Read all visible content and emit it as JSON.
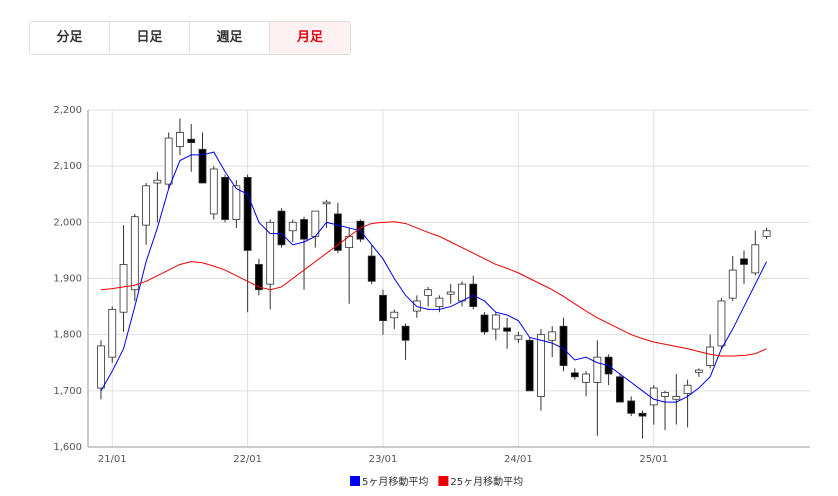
{
  "tabs": {
    "labels": [
      "分足",
      "日足",
      "週足",
      "月足"
    ],
    "selected": 3
  },
  "chart_data": {
    "type": "candlestick",
    "categories": [
      null,
      "21/01",
      null,
      null,
      null,
      null,
      null,
      null,
      null,
      null,
      null,
      null,
      null,
      "22/01",
      null,
      null,
      null,
      null,
      null,
      null,
      null,
      null,
      null,
      null,
      null,
      "23/01",
      null,
      null,
      null,
      null,
      null,
      null,
      null,
      null,
      null,
      null,
      null,
      "24/01",
      null,
      null,
      null,
      null,
      null,
      null,
      null,
      null,
      null,
      null,
      null,
      "25/01",
      null,
      null,
      null,
      null,
      null,
      null,
      null,
      null,
      null,
      null
    ],
    "candles": {
      "open": [
        1705,
        1760,
        1840,
        1880,
        1995,
        2070,
        2068,
        2135,
        2148,
        2130,
        2015,
        2080,
        2005,
        2080,
        1925,
        1890,
        2020,
        1985,
        2005,
        1975,
        2033,
        2015,
        1955,
        2002,
        1940,
        1870,
        1830,
        1815,
        1842,
        1870,
        1850,
        1872,
        1860,
        1890,
        1835,
        1810,
        1812,
        1792,
        1790,
        1690,
        1790,
        1815,
        1732,
        1715,
        1715,
        1760,
        1725,
        1682,
        1660,
        1675,
        1690,
        1685,
        1695,
        1733,
        1745,
        1780,
        1865,
        1935,
        1910,
        1975
      ],
      "high": [
        1790,
        1850,
        1995,
        2015,
        2070,
        2090,
        2160,
        2185,
        2175,
        2160,
        2100,
        2085,
        2075,
        2085,
        1935,
        2005,
        2025,
        2005,
        2010,
        2020,
        2040,
        2035,
        1990,
        2005,
        1960,
        1880,
        1845,
        1820,
        1870,
        1885,
        1870,
        1890,
        1895,
        1905,
        1840,
        1840,
        1830,
        1805,
        1795,
        1810,
        1815,
        1830,
        1740,
        1735,
        1790,
        1765,
        1730,
        1690,
        1665,
        1710,
        1700,
        1730,
        1720,
        1740,
        1800,
        1865,
        1940,
        1950,
        1985,
        1990
      ],
      "low": [
        1685,
        1750,
        1805,
        1860,
        1960,
        2000,
        2060,
        2120,
        2090,
        2070,
        2005,
        2000,
        1990,
        1840,
        1870,
        1845,
        1955,
        1965,
        1880,
        1955,
        1990,
        1945,
        1855,
        1965,
        1890,
        1800,
        1810,
        1755,
        1830,
        1850,
        1840,
        1855,
        1850,
        1845,
        1800,
        1790,
        1775,
        1785,
        1700,
        1665,
        1760,
        1735,
        1720,
        1690,
        1620,
        1710,
        1680,
        1655,
        1615,
        1640,
        1630,
        1640,
        1635,
        1725,
        1740,
        1775,
        1860,
        1890,
        1905,
        1970
      ],
      "close": [
        1780,
        1845,
        1925,
        2010,
        2065,
        2075,
        2150,
        2160,
        2142,
        2070,
        2095,
        2005,
        2065,
        1950,
        1880,
        2000,
        1960,
        2000,
        1970,
        2020,
        2036,
        1950,
        1975,
        1970,
        1895,
        1825,
        1840,
        1790,
        1860,
        1880,
        1865,
        1876,
        1890,
        1850,
        1805,
        1835,
        1806,
        1798,
        1700,
        1800,
        1805,
        1745,
        1725,
        1730,
        1760,
        1730,
        1680,
        1660,
        1655,
        1705,
        1697,
        1690,
        1710,
        1737,
        1778,
        1860,
        1915,
        1925,
        1960,
        1985
      ],
      "up_color": "#ffffff",
      "down_color": "#000000"
    },
    "series": [
      {
        "name": "5ヶ月移動平均",
        "color": "#0000ee",
        "values": [
          1700,
          1735,
          1775,
          1850,
          1930,
          1990,
          2060,
          2110,
          2120,
          2120,
          2125,
          2090,
          2060,
          2050,
          2000,
          1980,
          1980,
          1960,
          1965,
          1975,
          2000,
          1995,
          1990,
          1985,
          1960,
          1935,
          1900,
          1870,
          1850,
          1845,
          1845,
          1850,
          1860,
          1870,
          1860,
          1840,
          1835,
          1825,
          1795,
          1790,
          1785,
          1775,
          1755,
          1760,
          1750,
          1745,
          1730,
          1715,
          1700,
          1685,
          1680,
          1680,
          1690,
          1705,
          1725,
          1775,
          1810,
          1850,
          1890,
          1930
        ]
      },
      {
        "name": "25ヶ月移動平均",
        "color": "#ee0000",
        "values": [
          1880,
          1882,
          1885,
          1888,
          1895,
          1905,
          1915,
          1925,
          1930,
          1928,
          1922,
          1915,
          1905,
          1895,
          1885,
          1880,
          1885,
          1900,
          1915,
          1930,
          1945,
          1960,
          1975,
          1990,
          1998,
          2000,
          2001,
          1998,
          1990,
          1982,
          1975,
          1965,
          1955,
          1945,
          1935,
          1925,
          1918,
          1910,
          1900,
          1890,
          1880,
          1868,
          1855,
          1842,
          1830,
          1820,
          1810,
          1800,
          1793,
          1787,
          1783,
          1779,
          1775,
          1770,
          1765,
          1762,
          1762,
          1763,
          1766,
          1775
        ]
      }
    ],
    "ylim": [
      1600,
      2200
    ],
    "yticks": [
      {
        "value": 1600,
        "label": "1,600"
      },
      {
        "value": 1700,
        "label": "1,700"
      },
      {
        "value": 1800,
        "label": "1,800"
      },
      {
        "value": 1900,
        "label": "1,900"
      },
      {
        "value": 2000,
        "label": "2,000"
      },
      {
        "value": 2100,
        "label": "2,100"
      },
      {
        "value": 2200,
        "label": "2,200"
      }
    ],
    "grid": true
  }
}
